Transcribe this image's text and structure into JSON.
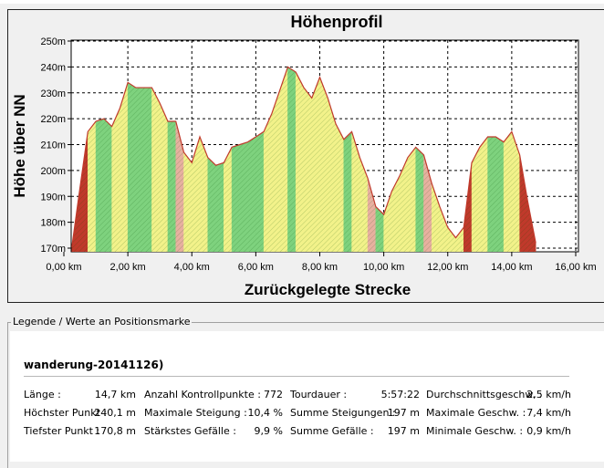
{
  "chart_data": {
    "type": "area",
    "title": "Höhenprofil",
    "xlabel": "Zurückgelegte Strecke",
    "ylabel": "Höhe über NN",
    "xlim": [
      0,
      16
    ],
    "ylim": [
      170,
      250
    ],
    "x_ticks": [
      "0,00 km",
      "2,00 km",
      "4,00 km",
      "6,00 km",
      "8,00 km",
      "10,00 km",
      "12,00 km",
      "14,00 km",
      "16,00 km"
    ],
    "y_ticks": [
      "170m",
      "180m",
      "190m",
      "200m",
      "210m",
      "220m",
      "230m",
      "240m",
      "250m"
    ],
    "grid": true,
    "x": [
      0.25,
      0.5,
      0.75,
      1.0,
      1.25,
      1.5,
      1.75,
      2.0,
      2.25,
      2.5,
      2.75,
      3.0,
      3.25,
      3.5,
      3.75,
      4.0,
      4.25,
      4.5,
      4.75,
      5.0,
      5.25,
      5.5,
      5.75,
      6.0,
      6.25,
      6.5,
      6.75,
      7.0,
      7.25,
      7.5,
      7.75,
      8.0,
      8.25,
      8.5,
      8.75,
      9.0,
      9.25,
      9.5,
      9.75,
      10.0,
      10.25,
      10.5,
      10.75,
      11.0,
      11.25,
      11.5,
      11.75,
      12.0,
      12.25,
      12.5,
      12.75,
      13.0,
      13.25,
      13.5,
      13.75,
      14.0,
      14.25,
      14.5,
      14.75
    ],
    "values": [
      170.5,
      193,
      215,
      219,
      220,
      217,
      224,
      234,
      232,
      232,
      232,
      226,
      219,
      219,
      207,
      203,
      213,
      205,
      202,
      203,
      209,
      210,
      211,
      213,
      215,
      222,
      231,
      240,
      238,
      232,
      228,
      236,
      228,
      218,
      212,
      215,
      205,
      197,
      186,
      183,
      192,
      198,
      205,
      209,
      206,
      195,
      186,
      178,
      174,
      178,
      203,
      209,
      213,
      213,
      211,
      215,
      206,
      188,
      172
    ],
    "color_note": "fill shaded green-yellow-red by slope; outline red"
  },
  "legend": {
    "caption": "Legende / Werte an Positionsmarke",
    "track_name": "wanderung-20141126)",
    "stats": [
      [
        {
          "label": "Länge :",
          "value": "14,7 km"
        },
        {
          "label": "Höchster Punkt :",
          "value": "240,1 m"
        },
        {
          "label": "Tiefster Punkt :",
          "value": "170,8 m"
        }
      ],
      [
        {
          "label": "Anzahl Kontrollpunkte :",
          "value": "772"
        },
        {
          "label": "Maximale Steigung :",
          "value": "10,4 %"
        },
        {
          "label": "Stärkstes Gefälle :",
          "value": "9,9 %"
        }
      ],
      [
        {
          "label": "Tourdauer :",
          "value": "5:57:22"
        },
        {
          "label": "Summe Steigungen :",
          "value": "197 m"
        },
        {
          "label": "Summe Gefälle :",
          "value": "197 m"
        }
      ],
      [
        {
          "label": "Durchschnittsgeschw. :",
          "value": "2,5 km/h"
        },
        {
          "label": "Maximale Geschw. :",
          "value": "7,4 km/h"
        },
        {
          "label": "Minimale Geschw. :",
          "value": "0,9 km/h"
        }
      ]
    ]
  },
  "colors": {
    "outline": "#c0392b",
    "fill_green": "#7ed27e",
    "fill_yellow": "#f2f28a",
    "fill_red": "#c0392b"
  }
}
